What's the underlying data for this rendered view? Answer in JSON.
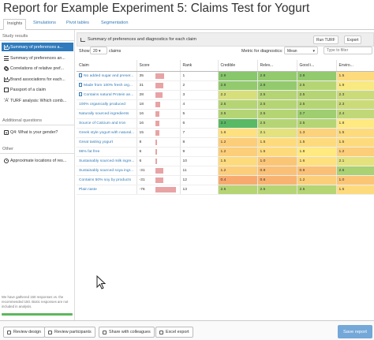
{
  "title": "Report for Example Experiment 5: Claims Test for Yogurt",
  "tabs": [
    {
      "label": "Insights"
    },
    {
      "label": "Simulations"
    },
    {
      "label": "Pivot tables"
    },
    {
      "label": "Segmentation"
    }
  ],
  "sidebar": {
    "study_results_heading": "Study results",
    "items": [
      {
        "label": "Summary of preferences a...",
        "icon": "bar-chart-icon"
      },
      {
        "label": "Summary of preferences an...",
        "icon": "list-icon"
      },
      {
        "label": "Correlations of relative pref...",
        "icon": "network-icon"
      },
      {
        "label": "Brand associations for each...",
        "icon": "bar-chart-icon"
      },
      {
        "label": "Passport of a claim",
        "icon": "box-icon"
      },
      {
        "label": "TURF analysis: Which comb...",
        "icon": "turf-icon"
      }
    ],
    "additional_heading": "Additional questions",
    "additional_items": [
      {
        "label": "Q4: What is your gender?",
        "icon": "question-icon"
      }
    ],
    "other_heading": "Other",
    "other_items": [
      {
        "label": "Approximate locations of res...",
        "icon": "gear-icon"
      }
    ],
    "footnote": "We have gathered 150 responses vs. the recommended 150. Biotic responses are not included in analysis.",
    "progress_fraction": 1.0,
    "progress_color": "#5cb85c"
  },
  "panel": {
    "title": "Summary of preferences and diagnostics for each claim",
    "run_turf_label": "Run TURF",
    "export_label": "Export"
  },
  "controls": {
    "show_label": "Show",
    "show_value": "20",
    "claims_label": "claims",
    "metric_label": "Metric for diagnostics:",
    "metric_value": "Mean",
    "search_placeholder": "Type to filter"
  },
  "table": {
    "headers": [
      "Claim",
      "Score",
      "Rank",
      "Credible",
      "Relev...",
      "Good i...",
      "Enviro..."
    ],
    "rows": [
      {
        "claim": "No added sugar and preser...",
        "linked": true,
        "score": 35,
        "rank": "1",
        "diag": [
          "2.9",
          "2.8",
          "2.8",
          "1.5"
        ]
      },
      {
        "claim": "Made from 100% fresh org...",
        "linked": true,
        "score": 31,
        "rank": "2",
        "diag": [
          "2.8",
          "2.8",
          "2.5",
          "1.9"
        ]
      },
      {
        "claim": "Contains natural Protein an...",
        "linked": true,
        "score": 28,
        "rank": "3",
        "diag": [
          "2.2",
          "2.5",
          "2.5",
          "2.3"
        ]
      },
      {
        "claim": "100% organically produced",
        "linked": false,
        "score": 18,
        "rank": "4",
        "diag": [
          "2.5",
          "2.5",
          "2.5",
          "2.3"
        ]
      },
      {
        "claim": "Naturally sourced ingredients",
        "linked": false,
        "score": 16,
        "rank": "5",
        "diag": [
          "2.5",
          "2.5",
          "2.7",
          "2.4"
        ]
      },
      {
        "claim": "Source of Calcium and Iron",
        "linked": false,
        "score": 16,
        "rank": "6",
        "diag": [
          "3.3",
          "2.5",
          "2.5",
          "1.8"
        ]
      },
      {
        "claim": "Greek style yogurt with natural...",
        "linked": false,
        "score": 15,
        "rank": "7",
        "diag": [
          "1.6",
          "2.1",
          "1.3",
          "1.5"
        ]
      },
      {
        "claim": "Great tasting yogurt",
        "linked": false,
        "score": 8,
        "rank": "8",
        "diag": [
          "1.2",
          "1.5",
          "1.5",
          "1.5"
        ]
      },
      {
        "claim": "96% fat free",
        "linked": false,
        "score": 6,
        "rank": "9",
        "diag": [
          "1.2",
          "1.5",
          "1.8",
          "1.2"
        ]
      },
      {
        "claim": "Sustainably sourced milk ingre...",
        "linked": false,
        "score": 6,
        "rank": "10",
        "diag": [
          "1.5",
          "1.0",
          "1.6",
          "2.1"
        ]
      },
      {
        "claim": "Sustainably sourced soya ingr...",
        "linked": false,
        "score": -31,
        "rank": "11",
        "diag": [
          "1.2",
          "0.9",
          "0.9",
          "2.6"
        ]
      },
      {
        "claim": "Contains 50% soy by products",
        "linked": false,
        "score": -31,
        "rank": "12",
        "diag": [
          "0.4",
          "0.6",
          "1.2",
          "1.0"
        ]
      },
      {
        "claim": "Plain taste",
        "linked": false,
        "score": -76,
        "rank": "13",
        "diag": [
          "2.5",
          "2.5",
          "2.5",
          "1.5"
        ]
      }
    ]
  },
  "colors": {
    "accent": "#2f7bbd",
    "score_bar": "#e8a3a5",
    "save_button": "#74a8d8"
  },
  "bottom_bar": {
    "review_design": "Review design",
    "review_participants": "Review participants",
    "share": "Share with colleagues",
    "excel_export": "Excel export",
    "save_report": "Save report"
  }
}
